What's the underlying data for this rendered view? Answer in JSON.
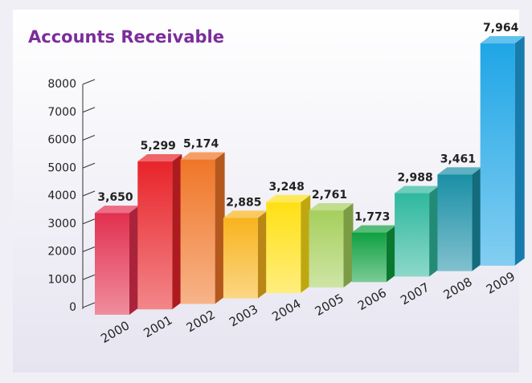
{
  "chart_data": {
    "type": "bar3d",
    "title": "Accounts Receivable",
    "categories": [
      "2000",
      "2001",
      "2002",
      "2003",
      "2004",
      "2005",
      "2006",
      "2007",
      "2008",
      "2009"
    ],
    "values": [
      3650,
      5299,
      5174,
      2885,
      3248,
      2761,
      1773,
      2988,
      3461,
      7964
    ],
    "value_labels": [
      "3,650",
      "5,299",
      "5,174",
      "2,885",
      "3,248",
      "2,761",
      "1,773",
      "2,988",
      "3,461",
      "7,964"
    ],
    "colors": [
      "#e2304f",
      "#e8242a",
      "#f07628",
      "#f8b41e",
      "#ffe014",
      "#a6cf5c",
      "#0fa040",
      "#2fb89e",
      "#1a8fa6",
      "#1fa6e6"
    ],
    "ylim": [
      0,
      8000
    ],
    "yticks": [
      0,
      1000,
      2000,
      3000,
      4000,
      5000,
      6000,
      7000,
      8000
    ]
  }
}
